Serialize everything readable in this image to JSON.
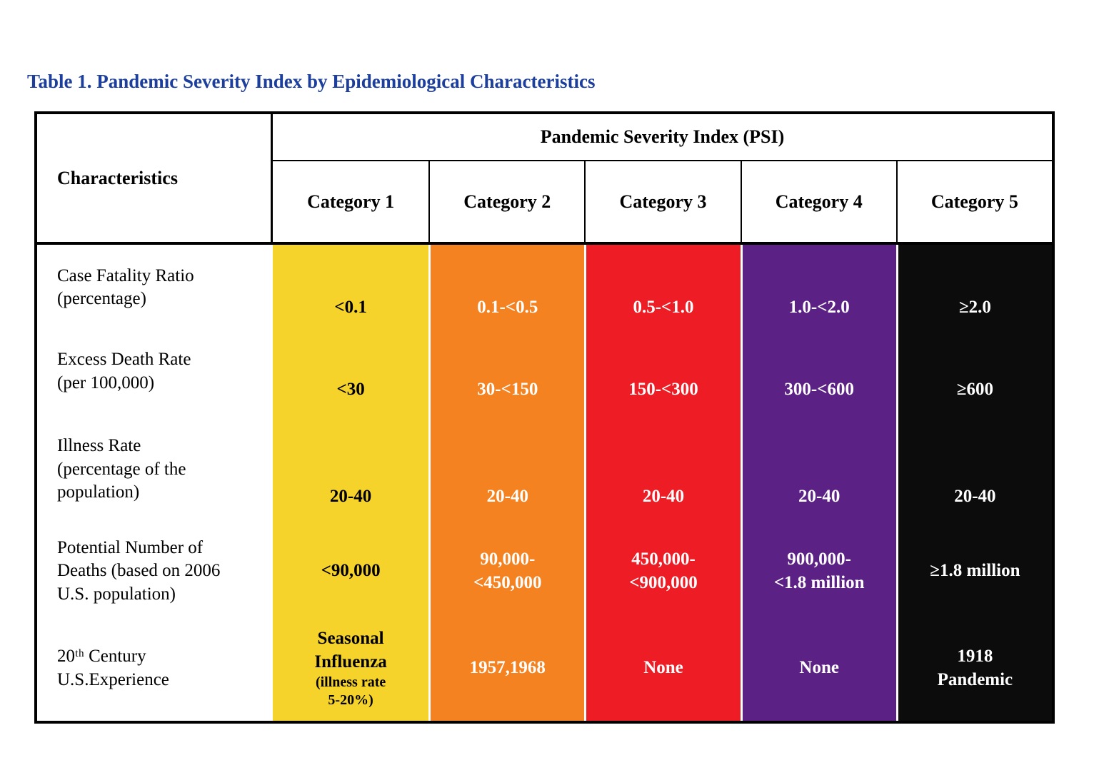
{
  "page": {
    "title": "Table 1. Pandemic Severity Index by Epidemiological Characteristics",
    "title_color": "#1c3f9e"
  },
  "table": {
    "psi_header": "Pandemic Severity Index (PSI)",
    "characteristics_header": "Characteristics",
    "categories": [
      {
        "label": "Category 1",
        "color": "#F6D32B",
        "text_color": "#000000"
      },
      {
        "label": "Category 2",
        "color": "#F58220",
        "text_color": "#FFFFFF"
      },
      {
        "label": "Category 3",
        "color": "#EE1C24",
        "text_color": "#FFFFFF"
      },
      {
        "label": "Category 4",
        "color": "#5B2184",
        "text_color": "#FFFFFF"
      },
      {
        "label": "Category 5",
        "color": "#0C0C0C",
        "text_color": "#FFFFFF"
      }
    ],
    "rows": [
      {
        "characteristic": "Case Fatality Ratio\n(percentage)",
        "values": [
          "<0.1",
          "0.1-<0.5",
          "0.5-<1.0",
          "1.0-<2.0",
          "≥2.0"
        ]
      },
      {
        "characteristic": "Excess Death Rate\n(per 100,000)",
        "values": [
          "<30",
          "30-<150",
          "150-<300",
          "300-<600",
          "≥600"
        ]
      },
      {
        "characteristic": "Illness Rate\n(percentage of the\npopulation)",
        "values": [
          "20-40",
          "20-40",
          "20-40",
          "20-40",
          "20-40"
        ]
      },
      {
        "characteristic": "Potential Number of\nDeaths (based on 2006\nU.S. population)",
        "values": [
          "<90,000",
          "90,000-\n<450,000",
          "450,000-\n<900,000",
          "900,000-\n<1.8 million",
          "≥1.8 million"
        ]
      },
      {
        "characteristic": "20ᵗʰ Century\nU.S.Experience",
        "values": [
          "Seasonal\nInfluenza",
          "1957,1968",
          "None",
          "None",
          "1918\nPandemic"
        ],
        "note": "(illness rate\n5-20%)"
      }
    ]
  }
}
